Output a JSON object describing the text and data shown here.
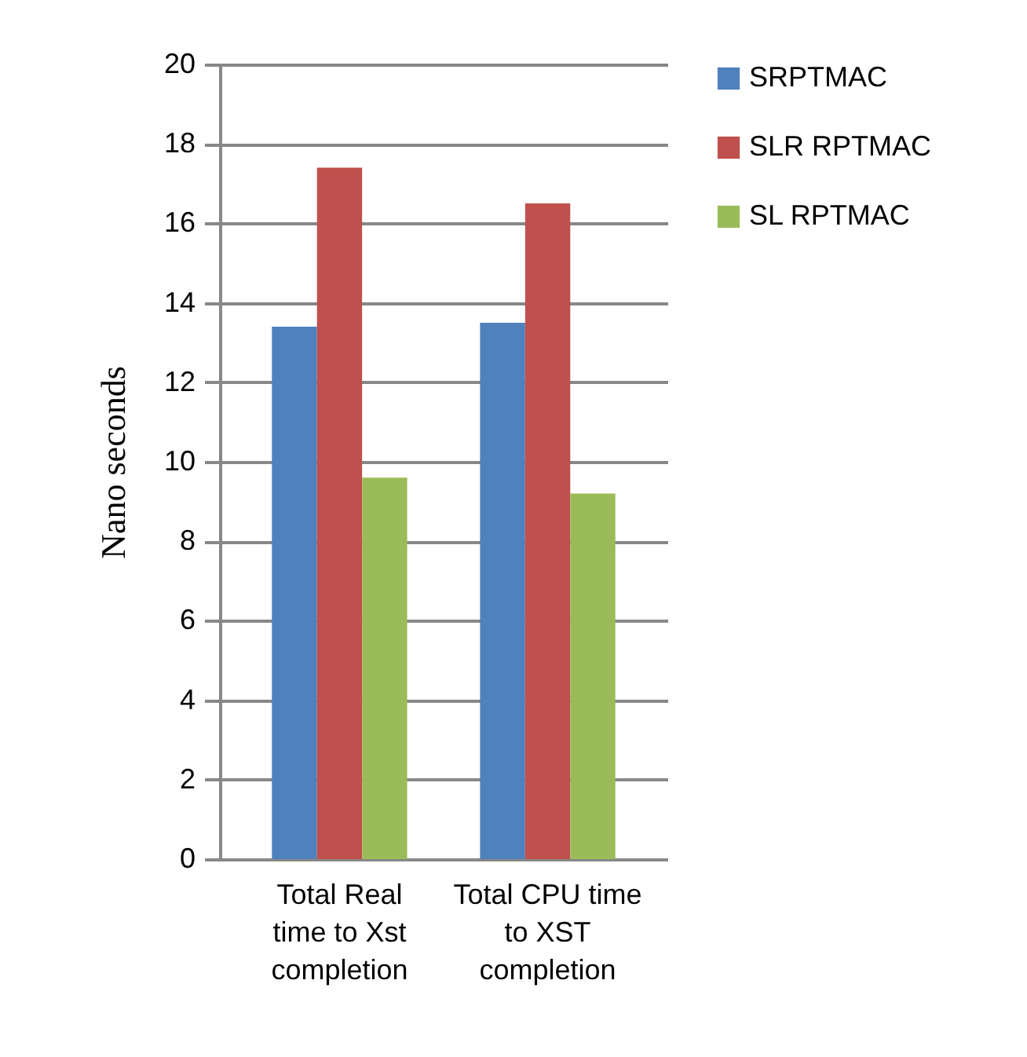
{
  "chart_data": {
    "type": "bar",
    "ylabel": "Nano seconds",
    "categories": [
      "Total Real time to Xst completion",
      "Total CPU time to XST completion"
    ],
    "series": [
      {
        "name": "SRPTMAC",
        "color": "#4f81bd",
        "values": [
          13.4,
          13.5
        ]
      },
      {
        "name": "SLR RPTMAC",
        "color": "#c0504d",
        "values": [
          17.4,
          16.5
        ]
      },
      {
        "name": "SL  RPTMAC",
        "color": "#9bbb59",
        "values": [
          9.6,
          9.2
        ]
      }
    ],
    "ylim": [
      0,
      20
    ],
    "yticks": [
      0,
      2,
      4,
      6,
      8,
      10,
      12,
      14,
      16,
      18,
      20
    ],
    "grid": "y",
    "legend": "right"
  }
}
